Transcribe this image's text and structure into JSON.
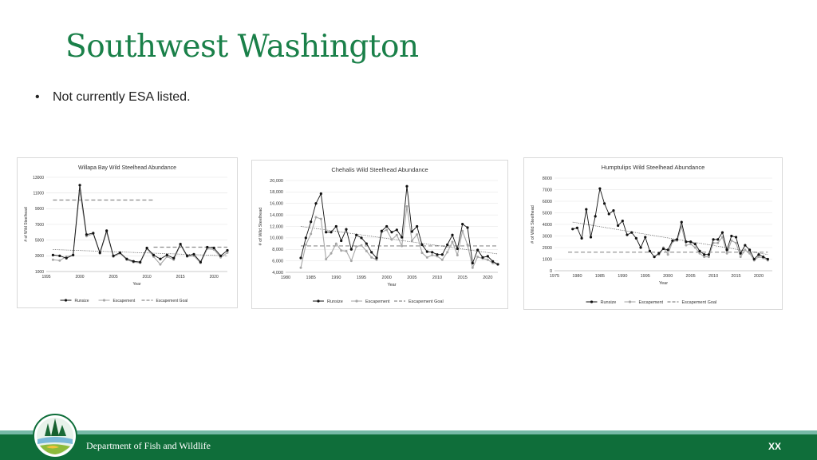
{
  "slide": {
    "title": "Southwest Washington",
    "bullet": "Not currently ESA listed.",
    "footer": "Department of Fish and Wildlife",
    "page_number": "XX"
  },
  "colors": {
    "title": "#1a8049",
    "footer_band": "#0f6e3a",
    "footer_band_light": "#77b9a7",
    "runsize": "#111111",
    "escapement": "#a6a6a6",
    "goal": "#8c8c8c",
    "trend": "#555555"
  },
  "legend": {
    "runsize": "Runsize",
    "escapement": "Escapement",
    "goal": "Escapement Goal"
  },
  "chart_data": [
    {
      "type": "line",
      "title": "Willapa Bay Wild Steelhead Abundance",
      "xlabel": "Year",
      "ylabel": "# of Wild Steelhead",
      "xlim": [
        1995,
        2022
      ],
      "xticks": [
        1995,
        2000,
        2005,
        2010,
        2015,
        2020
      ],
      "ylim": [
        1000,
        13000
      ],
      "yticks": [
        1000,
        3000,
        5000,
        7000,
        9000,
        11000,
        13000
      ],
      "ytick_labels": [
        "1000",
        "3000",
        "5000",
        "7000",
        "9000",
        "11000",
        "13000"
      ],
      "grid": true,
      "legend_position": "bottom",
      "x": [
        1996,
        1997,
        1998,
        1999,
        2000,
        2001,
        2002,
        2003,
        2004,
        2005,
        2006,
        2007,
        2008,
        2009,
        2010,
        2011,
        2012,
        2013,
        2014,
        2015,
        2016,
        2017,
        2018,
        2019,
        2020,
        2021,
        2022
      ],
      "series": [
        {
          "name": "Runsize",
          "values": [
            3100,
            3000,
            2700,
            3100,
            12000,
            5700,
            5900,
            3400,
            6200,
            3000,
            3400,
            2600,
            2300,
            2200,
            4000,
            3100,
            2600,
            3100,
            2700,
            4500,
            3000,
            3200,
            2200,
            4100,
            4000,
            3000,
            3700
          ]
        },
        {
          "name": "Escapement",
          "values": [
            2500,
            2400,
            2900,
            3100,
            11300,
            5500,
            5800,
            3300,
            6000,
            2900,
            3300,
            2500,
            2200,
            2100,
            3900,
            2900,
            1900,
            2900,
            2500,
            4400,
            2900,
            3000,
            2100,
            3900,
            3800,
            2800,
            3400
          ]
        }
      ],
      "goals": [
        {
          "x": [
            1996,
            2011
          ],
          "value": 10100
        },
        {
          "x": [
            2011,
            2022
          ],
          "value": 4100
        }
      ],
      "trend": [
        [
          1996,
          3800
        ],
        [
          2022,
          3000
        ]
      ]
    },
    {
      "type": "line",
      "title": "Chehalis Wild Steelhead Abundance",
      "xlabel": "Year",
      "ylabel": "# of Wild Steelhead",
      "xlim": [
        1980,
        2022
      ],
      "xticks": [
        1980,
        1985,
        1990,
        1995,
        2000,
        2005,
        2010,
        2015,
        2020
      ],
      "ylim": [
        4000,
        20000
      ],
      "yticks": [
        4000,
        6000,
        8000,
        10000,
        12000,
        14000,
        16000,
        18000,
        20000
      ],
      "ytick_labels": [
        "4,000",
        "6,000",
        "8,000",
        "10,000",
        "12,000",
        "14,000",
        "16,000",
        "18,000",
        "20,000"
      ],
      "grid": true,
      "legend_position": "bottom",
      "x": [
        1983,
        1984,
        1985,
        1986,
        1987,
        1988,
        1989,
        1990,
        1991,
        1992,
        1993,
        1994,
        1995,
        1996,
        1997,
        1998,
        1999,
        2000,
        2001,
        2002,
        2003,
        2004,
        2005,
        2006,
        2007,
        2008,
        2009,
        2010,
        2011,
        2012,
        2013,
        2014,
        2015,
        2016,
        2017,
        2018,
        2019,
        2020,
        2021,
        2022
      ],
      "series": [
        {
          "name": "Runsize",
          "values": [
            6500,
            10000,
            12800,
            16000,
            17700,
            11000,
            11000,
            12000,
            9500,
            11500,
            8000,
            10500,
            10000,
            9000,
            7500,
            6500,
            11200,
            12000,
            11000,
            11400,
            10100,
            19000,
            11100,
            12000,
            8800,
            7600,
            7500,
            7100,
            7100,
            8800,
            10500,
            8100,
            12400,
            11800,
            5600,
            7900,
            6600,
            6800,
            5900,
            5400
          ]
        },
        {
          "name": "Escapement",
          "values": [
            4800,
            8800,
            10700,
            13600,
            13300,
            6300,
            7300,
            9000,
            7800,
            7700,
            6000,
            8500,
            8700,
            7700,
            6600,
            6200,
            11000,
            11400,
            9700,
            10500,
            8600,
            15500,
            9500,
            10600,
            7400,
            6600,
            7000,
            6800,
            6200,
            7500,
            9300,
            7000,
            11200,
            8800,
            4800,
            6700,
            6400,
            6200,
            5600,
            5400
          ]
        }
      ],
      "goals": [
        {
          "x": [
            1983,
            2022
          ],
          "value": 8600
        }
      ],
      "trend": [
        [
          1983,
          12000
        ],
        [
          2022,
          7200
        ]
      ]
    },
    {
      "type": "line",
      "title": "Humptulips Wild Steelhead Abundance",
      "xlabel": "Year",
      "ylabel": "# of Wild Steelhead",
      "xlim": [
        1975,
        2023
      ],
      "xticks": [
        1975,
        1980,
        1985,
        1990,
        1995,
        2000,
        2005,
        2010,
        2015,
        2020
      ],
      "ylim": [
        0,
        8000
      ],
      "yticks": [
        0,
        1000,
        2000,
        3000,
        4000,
        5000,
        6000,
        7000,
        8000
      ],
      "ytick_labels": [
        "0",
        "1000",
        "2000",
        "3000",
        "4000",
        "5000",
        "6000",
        "7000",
        "8000"
      ],
      "grid": true,
      "legend_position": "bottom",
      "x": [
        1979,
        1980,
        1981,
        1982,
        1983,
        1984,
        1985,
        1986,
        1987,
        1988,
        1989,
        1990,
        1991,
        1992,
        1993,
        1994,
        1995,
        1996,
        1997,
        1998,
        1999,
        2000,
        2001,
        2002,
        2003,
        2004,
        2005,
        2006,
        2007,
        2008,
        2009,
        2010,
        2011,
        2012,
        2013,
        2014,
        2015,
        2016,
        2017,
        2018,
        2019,
        2020,
        2021,
        2022
      ],
      "series": [
        {
          "name": "Runsize",
          "values": [
            3600,
            3700,
            2800,
            5300,
            2900,
            4700,
            7100,
            5800,
            4900,
            5200,
            3900,
            4300,
            3100,
            3300,
            2800,
            2000,
            2900,
            1700,
            1200,
            1500,
            1900,
            1800,
            2600,
            2700,
            4200,
            2500,
            2500,
            2300,
            1700,
            1400,
            1400,
            2700,
            2700,
            3300,
            1800,
            3000,
            2900,
            1500,
            2200,
            1800,
            1000,
            1400,
            1200,
            1000
          ]
        },
        {
          "name": "Escapement",
          "values": [
            null,
            null,
            null,
            null,
            null,
            null,
            null,
            null,
            null,
            null,
            null,
            null,
            null,
            null,
            null,
            null,
            null,
            null,
            null,
            1400,
            2000,
            1400,
            2500,
            2600,
            3800,
            2200,
            2300,
            2000,
            1500,
            1200,
            1200,
            2400,
            2400,
            2900,
            1500,
            2600,
            2400,
            1200,
            1800,
            1500,
            900,
            1200,
            1100,
            900
          ]
        }
      ],
      "goals": [
        {
          "x": [
            1978,
            2022
          ],
          "value": 1600
        }
      ],
      "trend": [
        [
          1979,
          4200
        ],
        [
          2022,
          1400
        ]
      ]
    }
  ]
}
